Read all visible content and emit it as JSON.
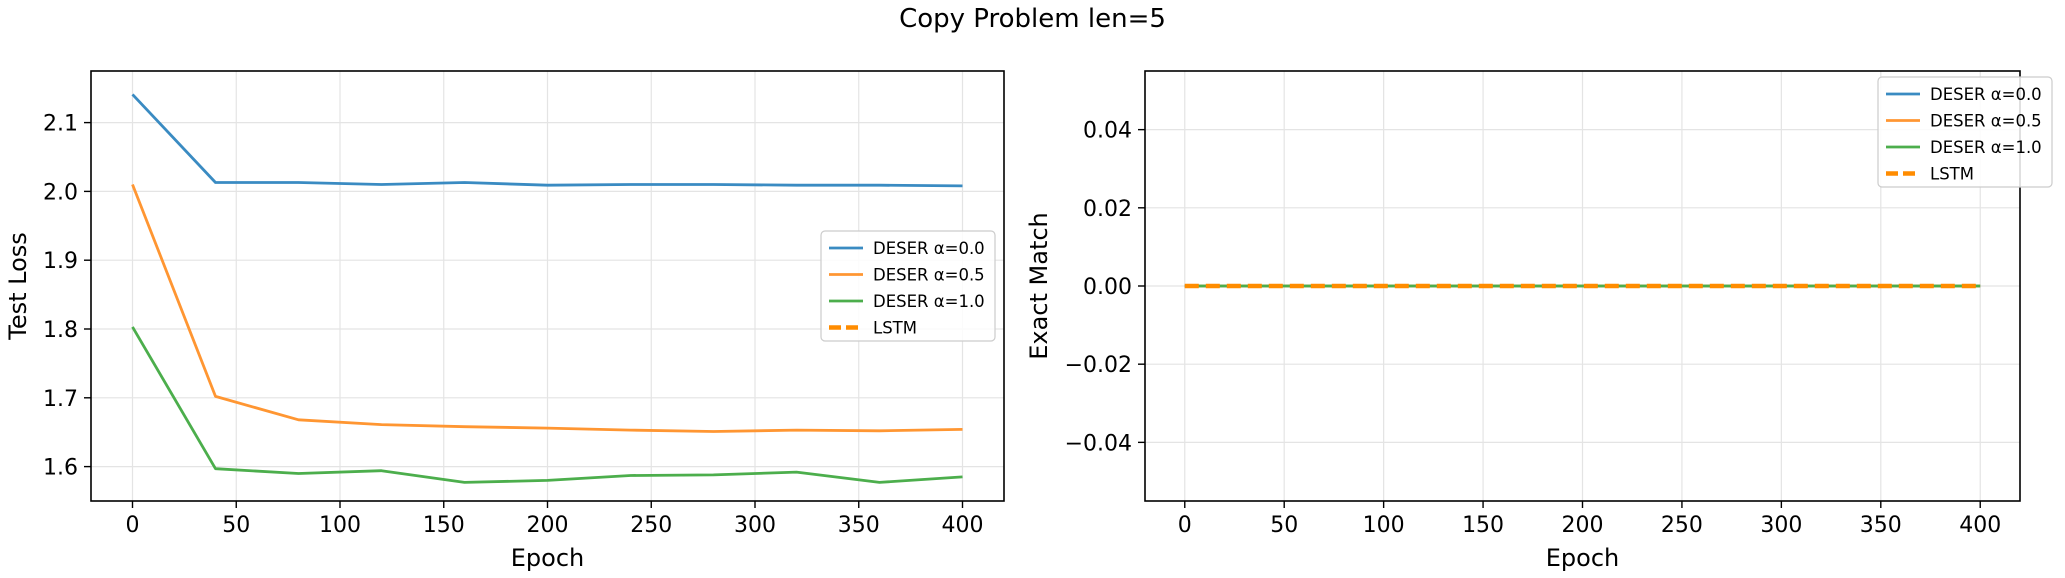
{
  "figure": {
    "title": "Copy Problem len=5"
  },
  "colors": {
    "deser_0": "#3a8bc2",
    "deser_05": "#ff9632",
    "deser_1": "#4cae4c",
    "lstm": "#ff8c00",
    "grid": "#e4e4e4"
  },
  "chart_data": [
    {
      "type": "line",
      "xlabel": "Epoch",
      "ylabel": "Test Loss",
      "xlim": [
        -20,
        420
      ],
      "ylim": [
        1.55,
        2.175
      ],
      "xticks": [
        0,
        50,
        100,
        150,
        200,
        250,
        300,
        350,
        400
      ],
      "yticks": [
        1.6,
        1.7,
        1.8,
        1.9,
        2.0,
        2.1
      ],
      "ytick_labels": [
        "1.6",
        "1.7",
        "1.8",
        "1.9",
        "2.0",
        "2.1"
      ],
      "grid": true,
      "legend_position": "center-right",
      "series": [
        {
          "name": "DESER α=0.0",
          "color": "#3a8bc2",
          "dashed": false,
          "x": [
            0,
            40,
            80,
            120,
            160,
            200,
            240,
            280,
            320,
            360,
            400
          ],
          "y": [
            2.141,
            2.013,
            2.013,
            2.01,
            2.013,
            2.009,
            2.01,
            2.01,
            2.009,
            2.009,
            2.008
          ]
        },
        {
          "name": "DESER α=0.5",
          "color": "#ff9632",
          "dashed": false,
          "x": [
            0,
            40,
            80,
            120,
            160,
            200,
            240,
            280,
            320,
            360,
            400
          ],
          "y": [
            2.01,
            1.702,
            1.668,
            1.661,
            1.658,
            1.656,
            1.653,
            1.651,
            1.653,
            1.652,
            1.654
          ]
        },
        {
          "name": "DESER α=1.0",
          "color": "#4cae4c",
          "dashed": false,
          "x": [
            0,
            40,
            80,
            120,
            160,
            200,
            240,
            280,
            320,
            360,
            400
          ],
          "y": [
            1.803,
            1.597,
            1.59,
            1.594,
            1.577,
            1.58,
            1.587,
            1.588,
            1.592,
            1.577,
            1.585
          ]
        },
        {
          "name": "LSTM",
          "color": "#ff8c00",
          "dashed": true,
          "x": [],
          "y": []
        }
      ]
    },
    {
      "type": "line",
      "xlabel": "Epoch",
      "ylabel": "Exact Match",
      "xlim": [
        -20,
        420
      ],
      "ylim": [
        -0.055,
        0.055
      ],
      "xticks": [
        0,
        50,
        100,
        150,
        200,
        250,
        300,
        350,
        400
      ],
      "yticks": [
        -0.04,
        -0.02,
        0.0,
        0.02,
        0.04
      ],
      "ytick_labels": [
        "−0.04",
        "−0.02",
        "0.00",
        "0.02",
        "0.04"
      ],
      "grid": true,
      "legend_position": "top-right",
      "series": [
        {
          "name": "DESER α=0.0",
          "color": "#3a8bc2",
          "dashed": false,
          "x": [
            0,
            40,
            80,
            120,
            160,
            200,
            240,
            280,
            320,
            360,
            400
          ],
          "y": [
            0,
            0,
            0,
            0,
            0,
            0,
            0,
            0,
            0,
            0,
            0
          ]
        },
        {
          "name": "DESER α=0.5",
          "color": "#ff9632",
          "dashed": false,
          "x": [
            0,
            40,
            80,
            120,
            160,
            200,
            240,
            280,
            320,
            360,
            400
          ],
          "y": [
            0,
            0,
            0,
            0,
            0,
            0,
            0,
            0,
            0,
            0,
            0
          ]
        },
        {
          "name": "DESER α=1.0",
          "color": "#4cae4c",
          "dashed": false,
          "x": [
            0,
            40,
            80,
            120,
            160,
            200,
            240,
            280,
            320,
            360,
            400
          ],
          "y": [
            0,
            0,
            0,
            0,
            0,
            0,
            0,
            0,
            0,
            0,
            0
          ]
        },
        {
          "name": "LSTM",
          "color": "#ff8c00",
          "dashed": true,
          "x": [
            0,
            40,
            80,
            120,
            160,
            200,
            240,
            280,
            320,
            360,
            400
          ],
          "y": [
            0,
            0,
            0,
            0,
            0,
            0,
            0,
            0,
            0,
            0,
            0
          ]
        }
      ]
    }
  ]
}
